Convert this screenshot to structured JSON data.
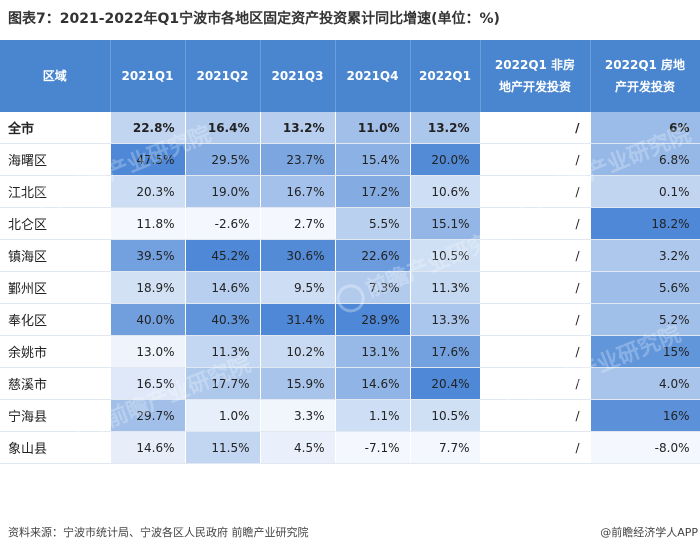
{
  "title": "图表7：2021-2022年Q1宁波市各地区固定资产投资累计同比增速(单位：%)",
  "header": [
    "区域",
    "2021Q1",
    "2021Q2",
    "2021Q3",
    "2021Q4",
    "2022Q1",
    "2022Q1 非房地产开发投资",
    "2022Q1 房地产开发投资"
  ],
  "header_lines": {
    "col7_line1": "2022Q1 非房",
    "col7_line2": "地产开发投资",
    "col8_line1": "2022Q1 房地",
    "col8_line2": "产开发投资"
  },
  "rows": [
    {
      "region": "全市",
      "q1": "22.8%",
      "q2": "16.4%",
      "q3": "13.2%",
      "q4": "11.0%",
      "q22": "13.2%",
      "nonre": "/",
      "re": "6%"
    },
    {
      "region": "海曙区",
      "q1": "47.5%",
      "q2": "29.5%",
      "q3": "23.7%",
      "q4": "15.4%",
      "q22": "20.0%",
      "nonre": "/",
      "re": "6.8%"
    },
    {
      "region": "江北区",
      "q1": "20.3%",
      "q2": "19.0%",
      "q3": "16.7%",
      "q4": "17.2%",
      "q22": "10.6%",
      "nonre": "/",
      "re": "0.1%"
    },
    {
      "region": "北仑区",
      "q1": "11.8%",
      "q2": "-2.6%",
      "q3": "2.7%",
      "q4": "5.5%",
      "q22": "15.1%",
      "nonre": "/",
      "re": "18.2%"
    },
    {
      "region": "镇海区",
      "q1": "39.5%",
      "q2": "45.2%",
      "q3": "30.6%",
      "q4": "22.6%",
      "q22": "10.5%",
      "nonre": "/",
      "re": "3.2%"
    },
    {
      "region": "鄞州区",
      "q1": "18.9%",
      "q2": "14.6%",
      "q3": "9.5%",
      "q4": "7.3%",
      "q22": "11.3%",
      "nonre": "/",
      "re": "5.6%"
    },
    {
      "region": "奉化区",
      "q1": "40.0%",
      "q2": "40.3%",
      "q3": "31.4%",
      "q4": "28.9%",
      "q22": "13.3%",
      "nonre": "/",
      "re": "5.2%"
    },
    {
      "region": "余姚市",
      "q1": "13.0%",
      "q2": "11.3%",
      "q3": "10.2%",
      "q4": "13.1%",
      "q22": "17.6%",
      "nonre": "/",
      "re": "15%"
    },
    {
      "region": "慈溪市",
      "q1": "16.5%",
      "q2": "17.7%",
      "q3": "15.9%",
      "q4": "14.6%",
      "q22": "20.4%",
      "nonre": "/",
      "re": "4.0%"
    },
    {
      "region": "宁海县",
      "q1": "29.7%",
      "q2": "1.0%",
      "q3": "3.3%",
      "q4": "1.1%",
      "q22": "10.5%",
      "nonre": "/",
      "re": "16%"
    },
    {
      "region": "象山县",
      "q1": "14.6%",
      "q2": "11.5%",
      "q3": "4.5%",
      "q4": "-7.1%",
      "q22": "7.7%",
      "nonre": "/",
      "re": "-8.0%"
    }
  ],
  "footer": {
    "source": "资料来源：宁波市统计局、宁波各区人民政府 前瞻产业研究院",
    "app": "@前瞻经济学人APP"
  },
  "watermark": "前瞻产业研究院",
  "colors": {
    "header_bg": "#4a86d0",
    "cell_low": "#f4f7fd",
    "cell_high": "#4e88d6"
  }
}
